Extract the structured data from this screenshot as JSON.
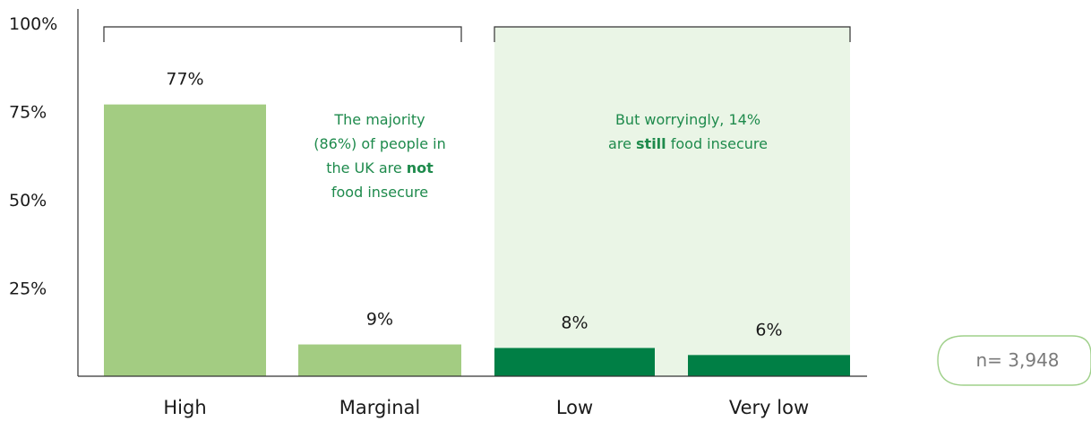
{
  "chart_data": {
    "type": "bar",
    "categories": [
      "High",
      "Marginal",
      "Low",
      "Very low"
    ],
    "values": [
      77,
      9,
      8,
      6
    ],
    "value_labels": [
      "77%",
      "9%",
      "8%",
      "6%"
    ],
    "yticks": [
      "25%",
      "50%",
      "75%",
      "100%"
    ],
    "ytick_values": [
      25,
      50,
      75,
      100
    ],
    "ylim": [
      0,
      100
    ],
    "grid": false,
    "bar_colors": [
      "#a3cc82",
      "#a3cc82",
      "#007f45",
      "#007f45"
    ],
    "groups": [
      {
        "categories": [
          "High",
          "Marginal"
        ],
        "lines": [
          [
            {
              "t": "The majority",
              "b": false
            }
          ],
          [
            {
              "t": "(86%) of people in",
              "b": false
            }
          ],
          [
            {
              "t": "the UK are ",
              "b": false
            },
            {
              "t": "not",
              "b": true
            }
          ],
          [
            {
              "t": "food insecure",
              "b": false
            }
          ]
        ]
      },
      {
        "categories": [
          "Low",
          "Very low"
        ],
        "shaded_color": "#eaf5e6",
        "lines": [
          [
            {
              "t": "But worryingly, 14%",
              "b": false
            }
          ],
          [
            {
              "t": "are ",
              "b": false
            },
            {
              "t": "still",
              "b": true
            },
            {
              "t": " food insecure",
              "b": false
            }
          ]
        ]
      }
    ],
    "sample_size_label": "n= 3,948"
  },
  "colors": {
    "annotation_text": "#1e8a4c",
    "axis": "#333333",
    "badge_border": "#9fd08a"
  }
}
